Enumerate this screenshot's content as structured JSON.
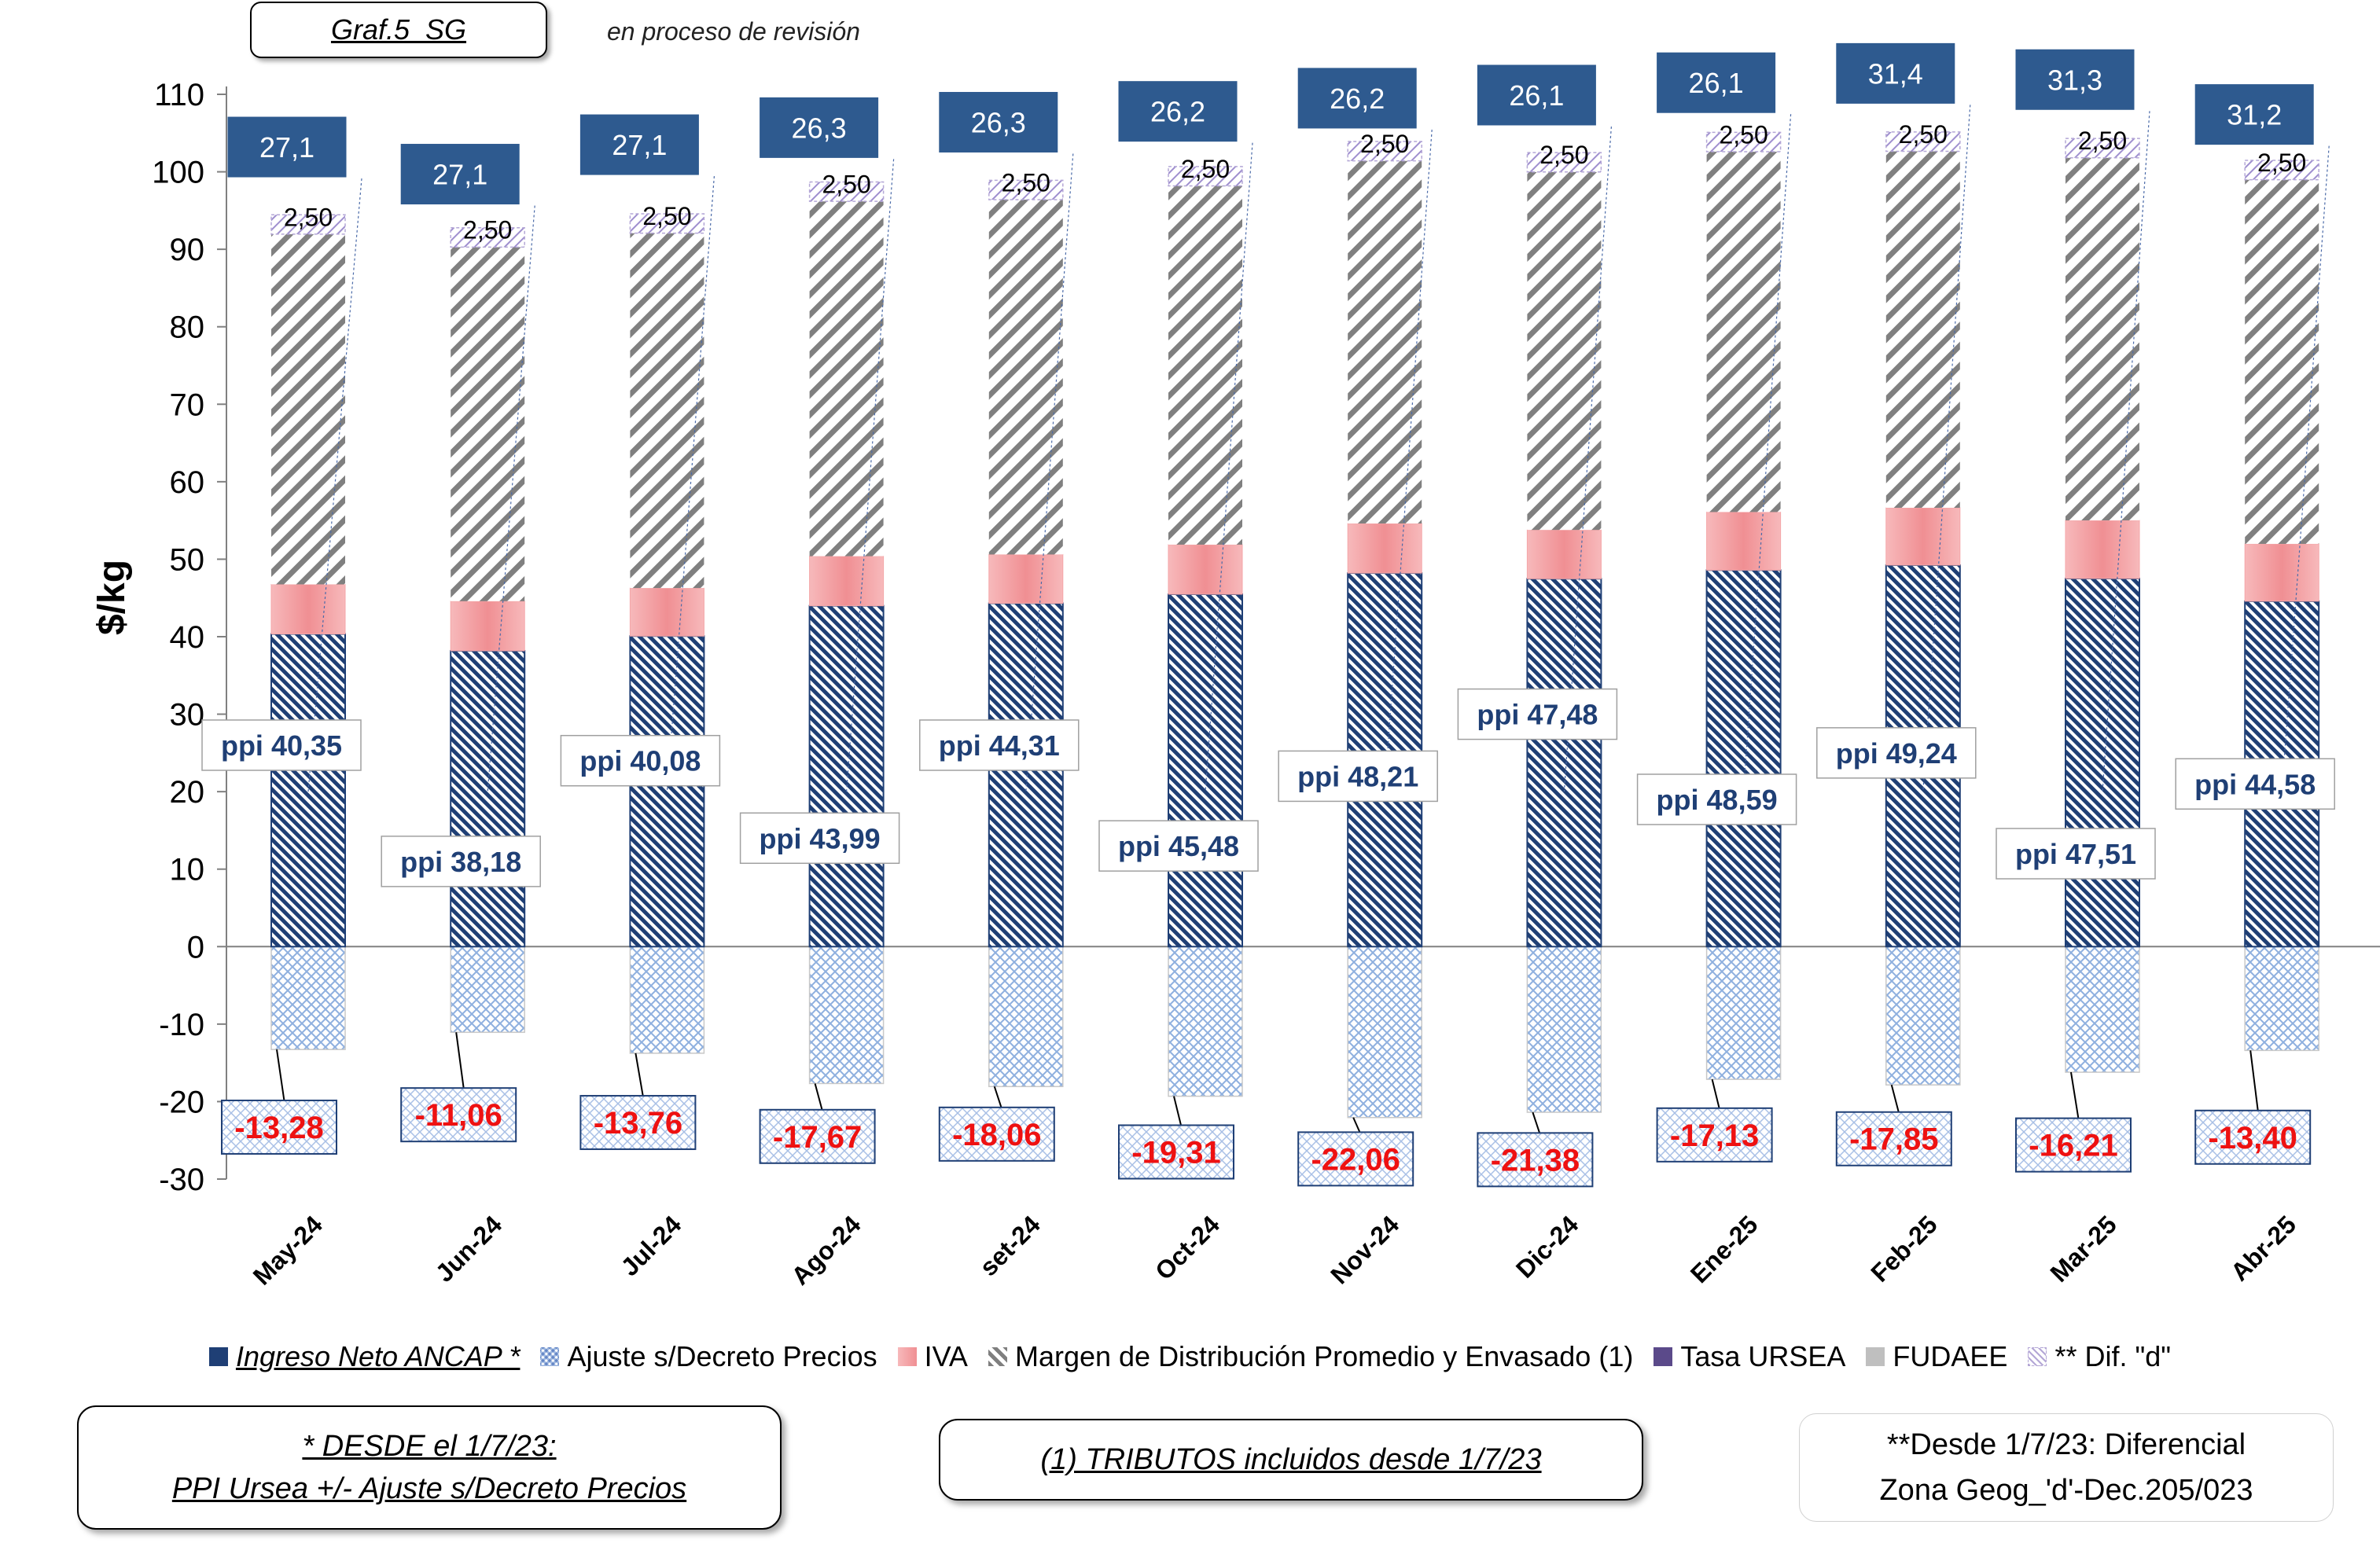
{
  "header": {
    "title": "Graf.5_SG",
    "status": "en proceso de revisión"
  },
  "notes": {
    "note1_line1": "* DESDE el 1/7/23:",
    "note1_line2": "PPI Ursea +/- Ajuste s/Decreto Precios",
    "note2": "(1) TRIBUTOS incluidos desde 1/7/23",
    "note3_line1": "**Desde 1/7/23: Diferencial",
    "note3_line2": "Zona Geog_'d'-Dec.205/023"
  },
  "legend": [
    {
      "label": "Ingreso Neto ANCAP *",
      "color": "#1f3f75",
      "italic": true
    },
    {
      "label": "Ajuste s/Decreto Precios",
      "color": "#9fb8e0"
    },
    {
      "label": "IVA",
      "color": "#f4a6a8"
    },
    {
      "label": "Margen de Distribución Promedio y Envasado (1)",
      "color": "#7f7f7f"
    },
    {
      "label": "Tasa URSEA",
      "color": "#5b4a8a"
    },
    {
      "label": "FUDAEE",
      "color": "#bfbfbf"
    },
    {
      "label": "** Dif. \"d\"",
      "color": "#b4a7d6"
    }
  ],
  "chart_data": {
    "type": "bar",
    "stacked": true,
    "ylabel": "$/kg",
    "ylim": [
      -30,
      110
    ],
    "yticks": [
      110,
      100,
      90,
      80,
      70,
      60,
      50,
      40,
      30,
      20,
      10,
      0,
      -10,
      -20,
      -30
    ],
    "categories": [
      "May-24",
      "Jun-24",
      "Jul-24",
      "Ago-24",
      "set-24",
      "Oct-24",
      "Nov-24",
      "Dic-24",
      "Ene-25",
      "Feb-25",
      "Mar-25",
      "Abr-25"
    ],
    "series": [
      {
        "name": "Ingreso Neto ANCAP *",
        "values": [
          40.35,
          38.18,
          40.08,
          43.99,
          44.31,
          45.48,
          48.21,
          47.48,
          48.59,
          49.24,
          47.51,
          44.58
        ]
      },
      {
        "name": "Ajuste s/Decreto Precios",
        "values": [
          -13.28,
          -11.06,
          -13.76,
          -17.67,
          -18.06,
          -19.31,
          -22.06,
          -21.38,
          -17.13,
          -17.85,
          -16.21,
          -13.4
        ]
      },
      {
        "name": "IVA",
        "values": [
          6.4,
          6.4,
          6.2,
          6.4,
          6.3,
          6.4,
          6.4,
          6.3,
          7.5,
          7.4,
          7.5,
          7.4
        ]
      },
      {
        "name": "Margen de Distribución Promedio y Envasado (1)",
        "values": [
          45.2,
          45.7,
          45.8,
          45.8,
          45.8,
          46.3,
          46.8,
          46.2,
          46.5,
          46.0,
          46.8,
          47.0
        ]
      },
      {
        "name": "** Dif. \"d\"",
        "values": [
          2.5,
          2.5,
          2.5,
          2.5,
          2.5,
          2.5,
          2.5,
          2.5,
          2.5,
          2.5,
          2.5,
          2.5
        ]
      }
    ],
    "ppi_labels": [
      "ppi  40,35",
      "ppi  38,18",
      "ppi 40,08",
      "ppi 43,99",
      "ppi 44,31",
      "ppi 45,48",
      "ppi 48,21",
      "ppi 47,48",
      "ppi 48,59",
      "ppi 49,24",
      "ppi 47,51",
      "ppi 44,58"
    ],
    "ppi_label_y": [
      26,
      11,
      24,
      14,
      26,
      13,
      22,
      30,
      19,
      25,
      12,
      21
    ],
    "adjust_labels": [
      "-13,28",
      "-11,06",
      "-13,76",
      "-17,67",
      "-18,06",
      "-19,31",
      "-22,06",
      "-21,38",
      "-17,13",
      "-17,85",
      "-16,21",
      "-13,40"
    ],
    "adjust_label_y": [
      -23.3,
      -21.7,
      -22.7,
      -24.5,
      -24.2,
      -26.5,
      -27.4,
      -27.5,
      -24.3,
      -24.8,
      -25.6,
      -24.6
    ],
    "dif_labels": [
      "2,50",
      "2,50",
      "2,50",
      "2,50",
      "2,50",
      "2,50",
      "2,50",
      "2,50",
      "2,50",
      "2,50",
      "2,50",
      "2,50"
    ],
    "top_labels": [
      "27,1",
      "27,1",
      "27,1",
      "26,3",
      "26,3",
      "26,2",
      "26,2",
      "26,1",
      "26,1",
      "31,4",
      "31,3",
      "31,2"
    ],
    "top_label_y": [
      103.2,
      99.7,
      103.5,
      105.7,
      106.4,
      107.8,
      109.5,
      109.9,
      111.5,
      112.7,
      111.9,
      107.4
    ]
  }
}
